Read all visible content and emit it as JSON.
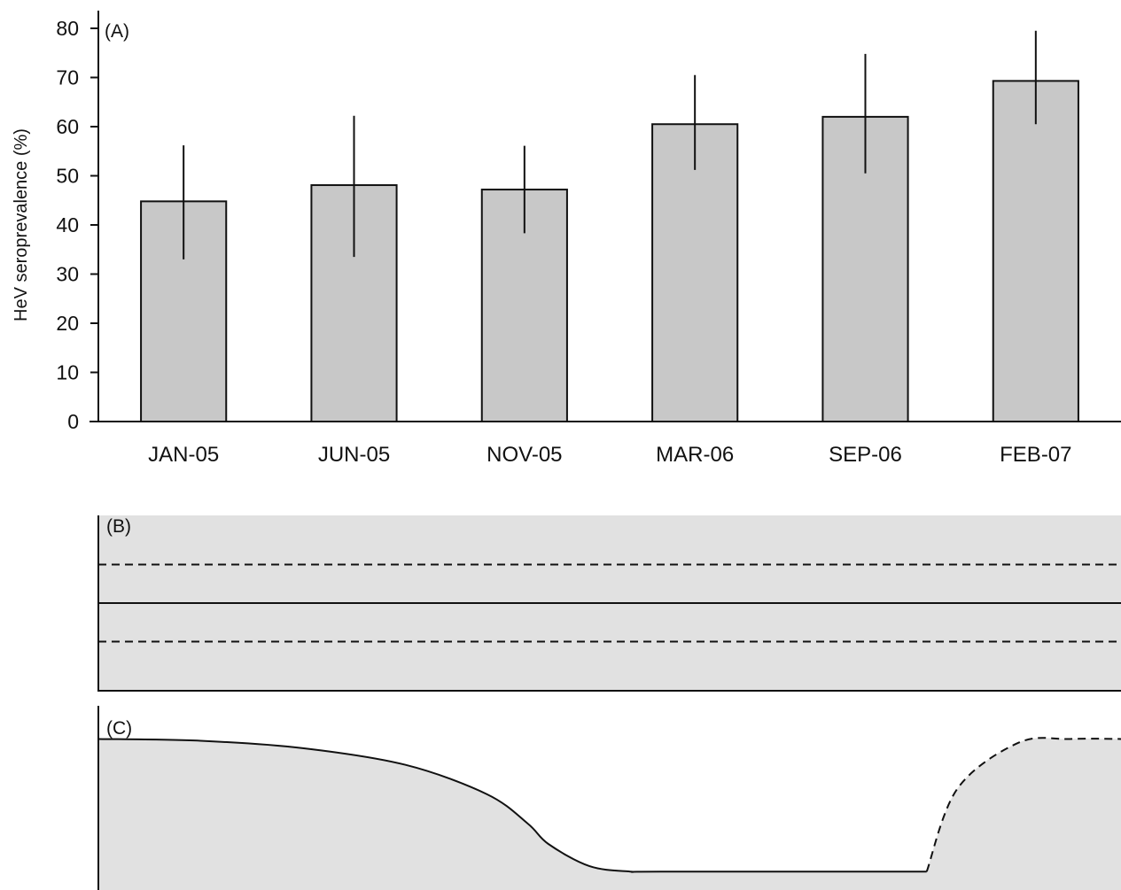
{
  "chart_data": [
    {
      "type": "bar",
      "panel_label": "(A)",
      "ylabel": "HeV seroprevalence (%)",
      "ylim": [
        0,
        80
      ],
      "yticks": [
        0,
        10,
        20,
        30,
        40,
        50,
        60,
        70,
        80
      ],
      "categories": [
        "JAN-05",
        "JUN-05",
        "NOV-05",
        "MAR-06",
        "SEP-06",
        "FEB-07"
      ],
      "values": [
        44.8,
        48.1,
        47.2,
        60.5,
        62.0,
        69.3
      ],
      "error_low": [
        33.0,
        33.5,
        38.3,
        51.2,
        50.5,
        60.5
      ],
      "error_high": [
        56.2,
        62.2,
        56.1,
        70.5,
        74.8,
        79.5
      ],
      "bar_color": "#c8c8c8",
      "grid": false
    },
    {
      "type": "area",
      "panel_label": "(B)",
      "x": [
        0,
        1
      ],
      "y_solid": [
        0.5,
        0.5
      ],
      "y_dashed_upper": [
        0.72,
        0.72
      ],
      "y_dashed_lower": [
        0.28,
        0.28
      ],
      "fill_color": "#e1e1e1"
    },
    {
      "type": "area",
      "panel_label": "(C)",
      "fill_color": "#e1e1e1",
      "x_solid": [
        0.0,
        0.1,
        0.2,
        0.3,
        0.38,
        0.42,
        0.44,
        0.48,
        0.52,
        0.55,
        0.81
      ],
      "y_solid": [
        0.82,
        0.81,
        0.77,
        0.68,
        0.52,
        0.36,
        0.25,
        0.13,
        0.1,
        0.1,
        0.1
      ],
      "x_dashed": [
        0.81,
        0.84,
        0.9,
        0.95,
        1.0
      ],
      "y_dashed": [
        0.1,
        0.55,
        0.8,
        0.82,
        0.82
      ]
    }
  ]
}
